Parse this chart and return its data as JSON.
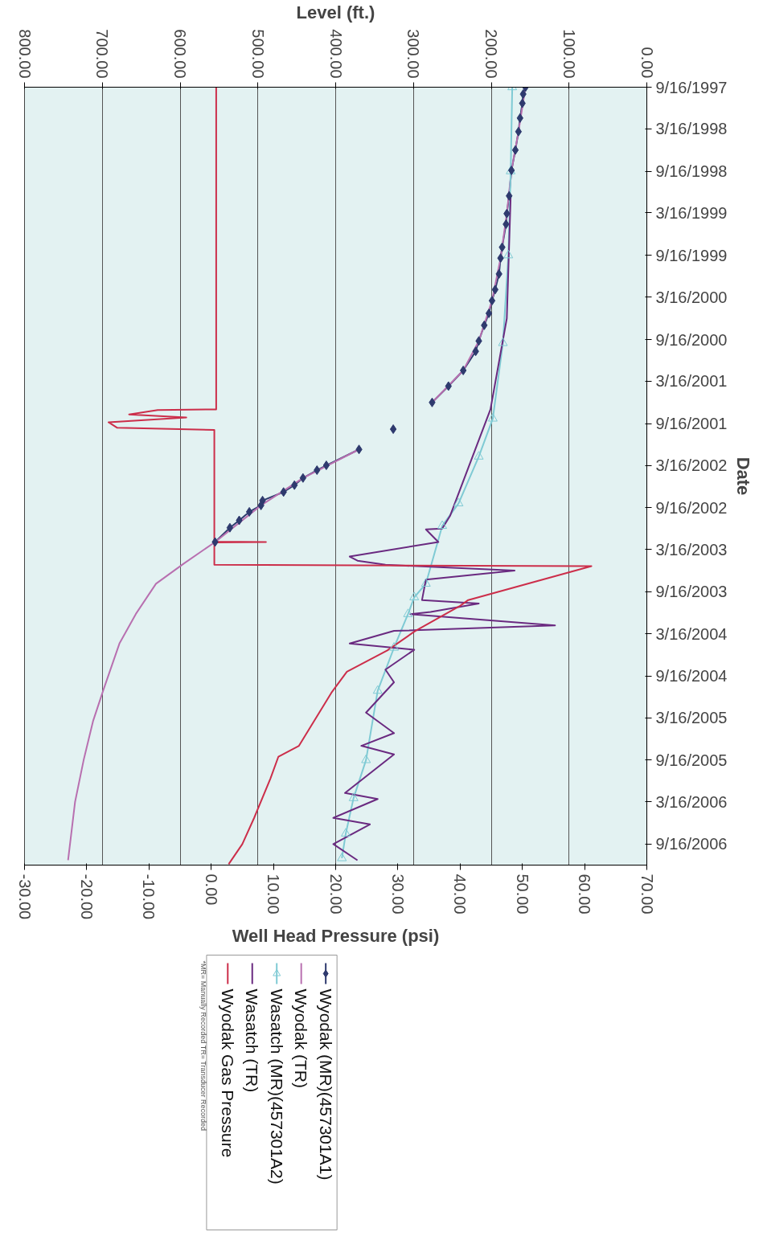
{
  "chart_data": {
    "type": "line",
    "orientation": "horizontal",
    "ylabel": "Date",
    "x2label": "Level (ft.)",
    "xlabel": "Well Head Pressure (psi)",
    "ylim": [
      "2006-12-16",
      "1997-09-16"
    ],
    "yticks": [
      {
        "value": "1997-09-16",
        "label": "9/16/1997"
      },
      {
        "value": "1998-03-16",
        "label": "3/16/1998"
      },
      {
        "value": "1998-09-16",
        "label": "9/16/1998"
      },
      {
        "value": "1999-03-16",
        "label": "3/16/1999"
      },
      {
        "value": "1999-09-16",
        "label": "9/16/1999"
      },
      {
        "value": "2000-03-16",
        "label": "3/16/2000"
      },
      {
        "value": "2000-09-16",
        "label": "9/16/2000"
      },
      {
        "value": "2001-03-16",
        "label": "3/16/2001"
      },
      {
        "value": "2001-09-16",
        "label": "9/16/2001"
      },
      {
        "value": "2002-03-16",
        "label": "3/16/2002"
      },
      {
        "value": "2002-09-16",
        "label": "9/16/2002"
      },
      {
        "value": "2003-03-16",
        "label": "3/16/2003"
      },
      {
        "value": "2003-09-16",
        "label": "9/16/2003"
      },
      {
        "value": "2004-03-16",
        "label": "3/16/2004"
      },
      {
        "value": "2004-09-16",
        "label": "9/16/2004"
      },
      {
        "value": "2005-03-16",
        "label": "3/16/2005"
      },
      {
        "value": "2005-09-16",
        "label": "9/16/2005"
      },
      {
        "value": "2006-03-16",
        "label": "3/16/2006"
      },
      {
        "value": "2006-09-16",
        "label": "9/16/2006"
      }
    ],
    "x2lim": [
      800,
      0
    ],
    "x2ticks": [
      {
        "value": 0,
        "label": "0.00"
      },
      {
        "value": 100,
        "label": "100.00"
      },
      {
        "value": 200,
        "label": "200.00"
      },
      {
        "value": 300,
        "label": "300.00"
      },
      {
        "value": 400,
        "label": "400.00"
      },
      {
        "value": 500,
        "label": "500.00"
      },
      {
        "value": 600,
        "label": "600.00"
      },
      {
        "value": 700,
        "label": "700.00"
      },
      {
        "value": 800,
        "label": "800.00"
      }
    ],
    "xlim": [
      -30,
      70
    ],
    "xticks": [
      {
        "value": -30,
        "label": "-30.00"
      },
      {
        "value": -20,
        "label": "-20.00"
      },
      {
        "value": -10,
        "label": "-10.00"
      },
      {
        "value": 0,
        "label": "0.00"
      },
      {
        "value": 10,
        "label": "10.00"
      },
      {
        "value": 20,
        "label": "20.00"
      },
      {
        "value": 30,
        "label": "30.00"
      },
      {
        "value": 40,
        "label": "40.00"
      },
      {
        "value": 50,
        "label": "50.00"
      },
      {
        "value": 60,
        "label": "60.00"
      },
      {
        "value": 70,
        "label": "70.00"
      }
    ],
    "grid": "x",
    "legend": "bottom",
    "line_style": "solid",
    "annotations": [
      "*MR= Manually Recorded  TR= Transducer Recorded"
    ],
    "series": [
      {
        "name": "Wyodak (MR)(457301A1)",
        "color": "#2e3a6e",
        "marker": "diamond",
        "axis": "x2",
        "x": [
          "1997-09-16",
          "1997-10-16",
          "1997-11-25",
          "1998-01-28",
          "1998-03-28",
          "1998-06-16",
          "1998-09-12",
          "1999-01-01",
          "1999-03-19",
          "1999-05-04",
          "1999-08-12",
          "1999-09-28",
          "1999-12-06",
          "2000-02-12",
          "2000-03-31",
          "2000-05-25",
          "2000-07-16",
          "2000-09-22",
          "2000-11-06",
          "2001-01-28",
          "2001-04-06",
          "2001-06-16",
          "2001-08-01",
          "2001-10-10",
          "2001-11-20",
          "2002-01-06",
          "2002-03-16",
          "2002-04-06",
          "2002-05-10",
          "2002-06-10",
          "2002-07-10",
          "2002-08-16",
          "2002-09-06",
          "2002-10-04",
          "2002-11-10",
          "2002-12-12",
          "2003-02-12"
        ],
        "values": [
          156,
          159,
          160,
          163,
          165,
          169,
          174,
          177,
          180,
          181,
          186,
          188,
          190,
          195,
          199,
          203,
          209,
          216,
          220,
          236,
          255,
          276,
          null,
          326,
          null,
          370,
          412,
          424,
          442,
          453,
          467,
          494,
          496,
          511,
          524,
          536,
          555
        ]
      },
      {
        "name": "Wyodak (TR)",
        "color": "#b870b0",
        "marker": "none",
        "axis": "x2",
        "x": [
          "1997-09-16",
          "1998-03-28",
          "1998-09-12",
          "1999-03-19",
          "1999-09-28",
          "2000-03-31",
          "2000-09-22",
          "2001-01-28",
          "2001-06-16",
          "2001-10-10",
          "2002-01-06",
          "2002-05-10",
          "2002-09-06",
          "2003-02-12",
          "2003-05-16",
          "2003-08-12",
          "2003-12-22",
          "2004-04-28",
          "2004-11-19",
          "2005-04-01",
          "2005-09-16",
          "2006-03-16",
          "2006-11-25"
        ],
        "values": [
          156,
          165,
          174,
          180,
          188,
          199,
          216,
          236,
          276,
          null,
          370,
          442,
          496,
          555,
          595,
          631,
          657,
          678,
          699,
          712,
          724,
          735,
          744
        ]
      },
      {
        "name": "Wasatch (MR)(457301A2)",
        "color": "#7fcad4",
        "marker": "triangle",
        "axis": "x2",
        "x": [
          "1997-09-16",
          "1998-09-16",
          "1999-09-16",
          "2000-10-01",
          "2001-08-25",
          "2002-02-06",
          "2002-08-28",
          "2002-12-04",
          "2003-08-12",
          "2003-10-10",
          "2003-12-22",
          "2004-05-16",
          "2004-11-19",
          "2005-09-16",
          "2006-02-28",
          "2006-08-01",
          "2006-11-16"
        ],
        "values": [
          173,
          175,
          178,
          185,
          198,
          216,
          242,
          263,
          284,
          299,
          307,
          325,
          346,
          361,
          377,
          387,
          392
        ]
      },
      {
        "name": "Wasatch (TR)",
        "color": "#6a2a80",
        "marker": "none",
        "axis": "x2",
        "x": [
          "1999-01-01",
          "2000-06-16",
          "2001-07-16",
          "2002-10-22",
          "2002-12-16",
          "2002-12-19",
          "2003-02-12",
          "2003-04-16",
          "2003-05-04",
          "2003-05-22",
          "2003-06-16",
          "2003-07-25",
          "2003-10-22",
          "2003-11-06",
          "2003-12-13",
          "2003-12-22",
          "2004-02-09",
          "2004-03-04",
          "2004-04-28",
          "2004-05-25",
          "2004-08-19",
          "2004-10-13",
          "2005-02-22",
          "2005-05-22",
          "2005-07-16",
          "2005-08-22",
          "2006-02-06",
          "2006-03-04",
          "2006-05-25",
          "2006-06-22",
          "2006-09-16",
          "2006-11-25"
        ],
        "values": [
          175,
          180,
          201,
          253,
          263,
          284,
          268,
          382,
          372,
          336,
          170,
          284,
          289,
          216,
          278,
          304,
          118,
          325,
          382,
          299,
          336,
          325,
          361,
          325,
          367,
          325,
          388,
          346,
          403,
          356,
          403,
          372
        ]
      },
      {
        "name": "Wyodak Gas Pressure",
        "color": "#cc2e4a",
        "marker": "none",
        "x": [
          "1997-09-16",
          "2001-07-16",
          "2001-07-19",
          "2001-08-07",
          "2001-08-20",
          "2001-09-10",
          "2001-10-04",
          "2001-10-13",
          "2003-02-10",
          "2003-02-12",
          "2003-02-14",
          "2003-05-22",
          "2003-05-28",
          "2003-10-22",
          "2003-11-16",
          "2004-03-04",
          "2004-05-28",
          "2004-08-28",
          "2004-11-28",
          "2005-07-16",
          "2005-09-01",
          "2005-12-06",
          "2006-05-25",
          "2006-09-16",
          "2006-12-12"
        ],
        "values": [
          0.8,
          0.8,
          -8.6,
          -13.2,
          -4.0,
          -16.5,
          -15.1,
          0.5,
          0.5,
          8.8,
          0.5,
          0.5,
          61.1,
          41.3,
          40,
          32.8,
          28.3,
          21.8,
          19.3,
          14.1,
          10.8,
          9.5,
          6.9,
          5,
          2.8
        ]
      }
    ]
  }
}
